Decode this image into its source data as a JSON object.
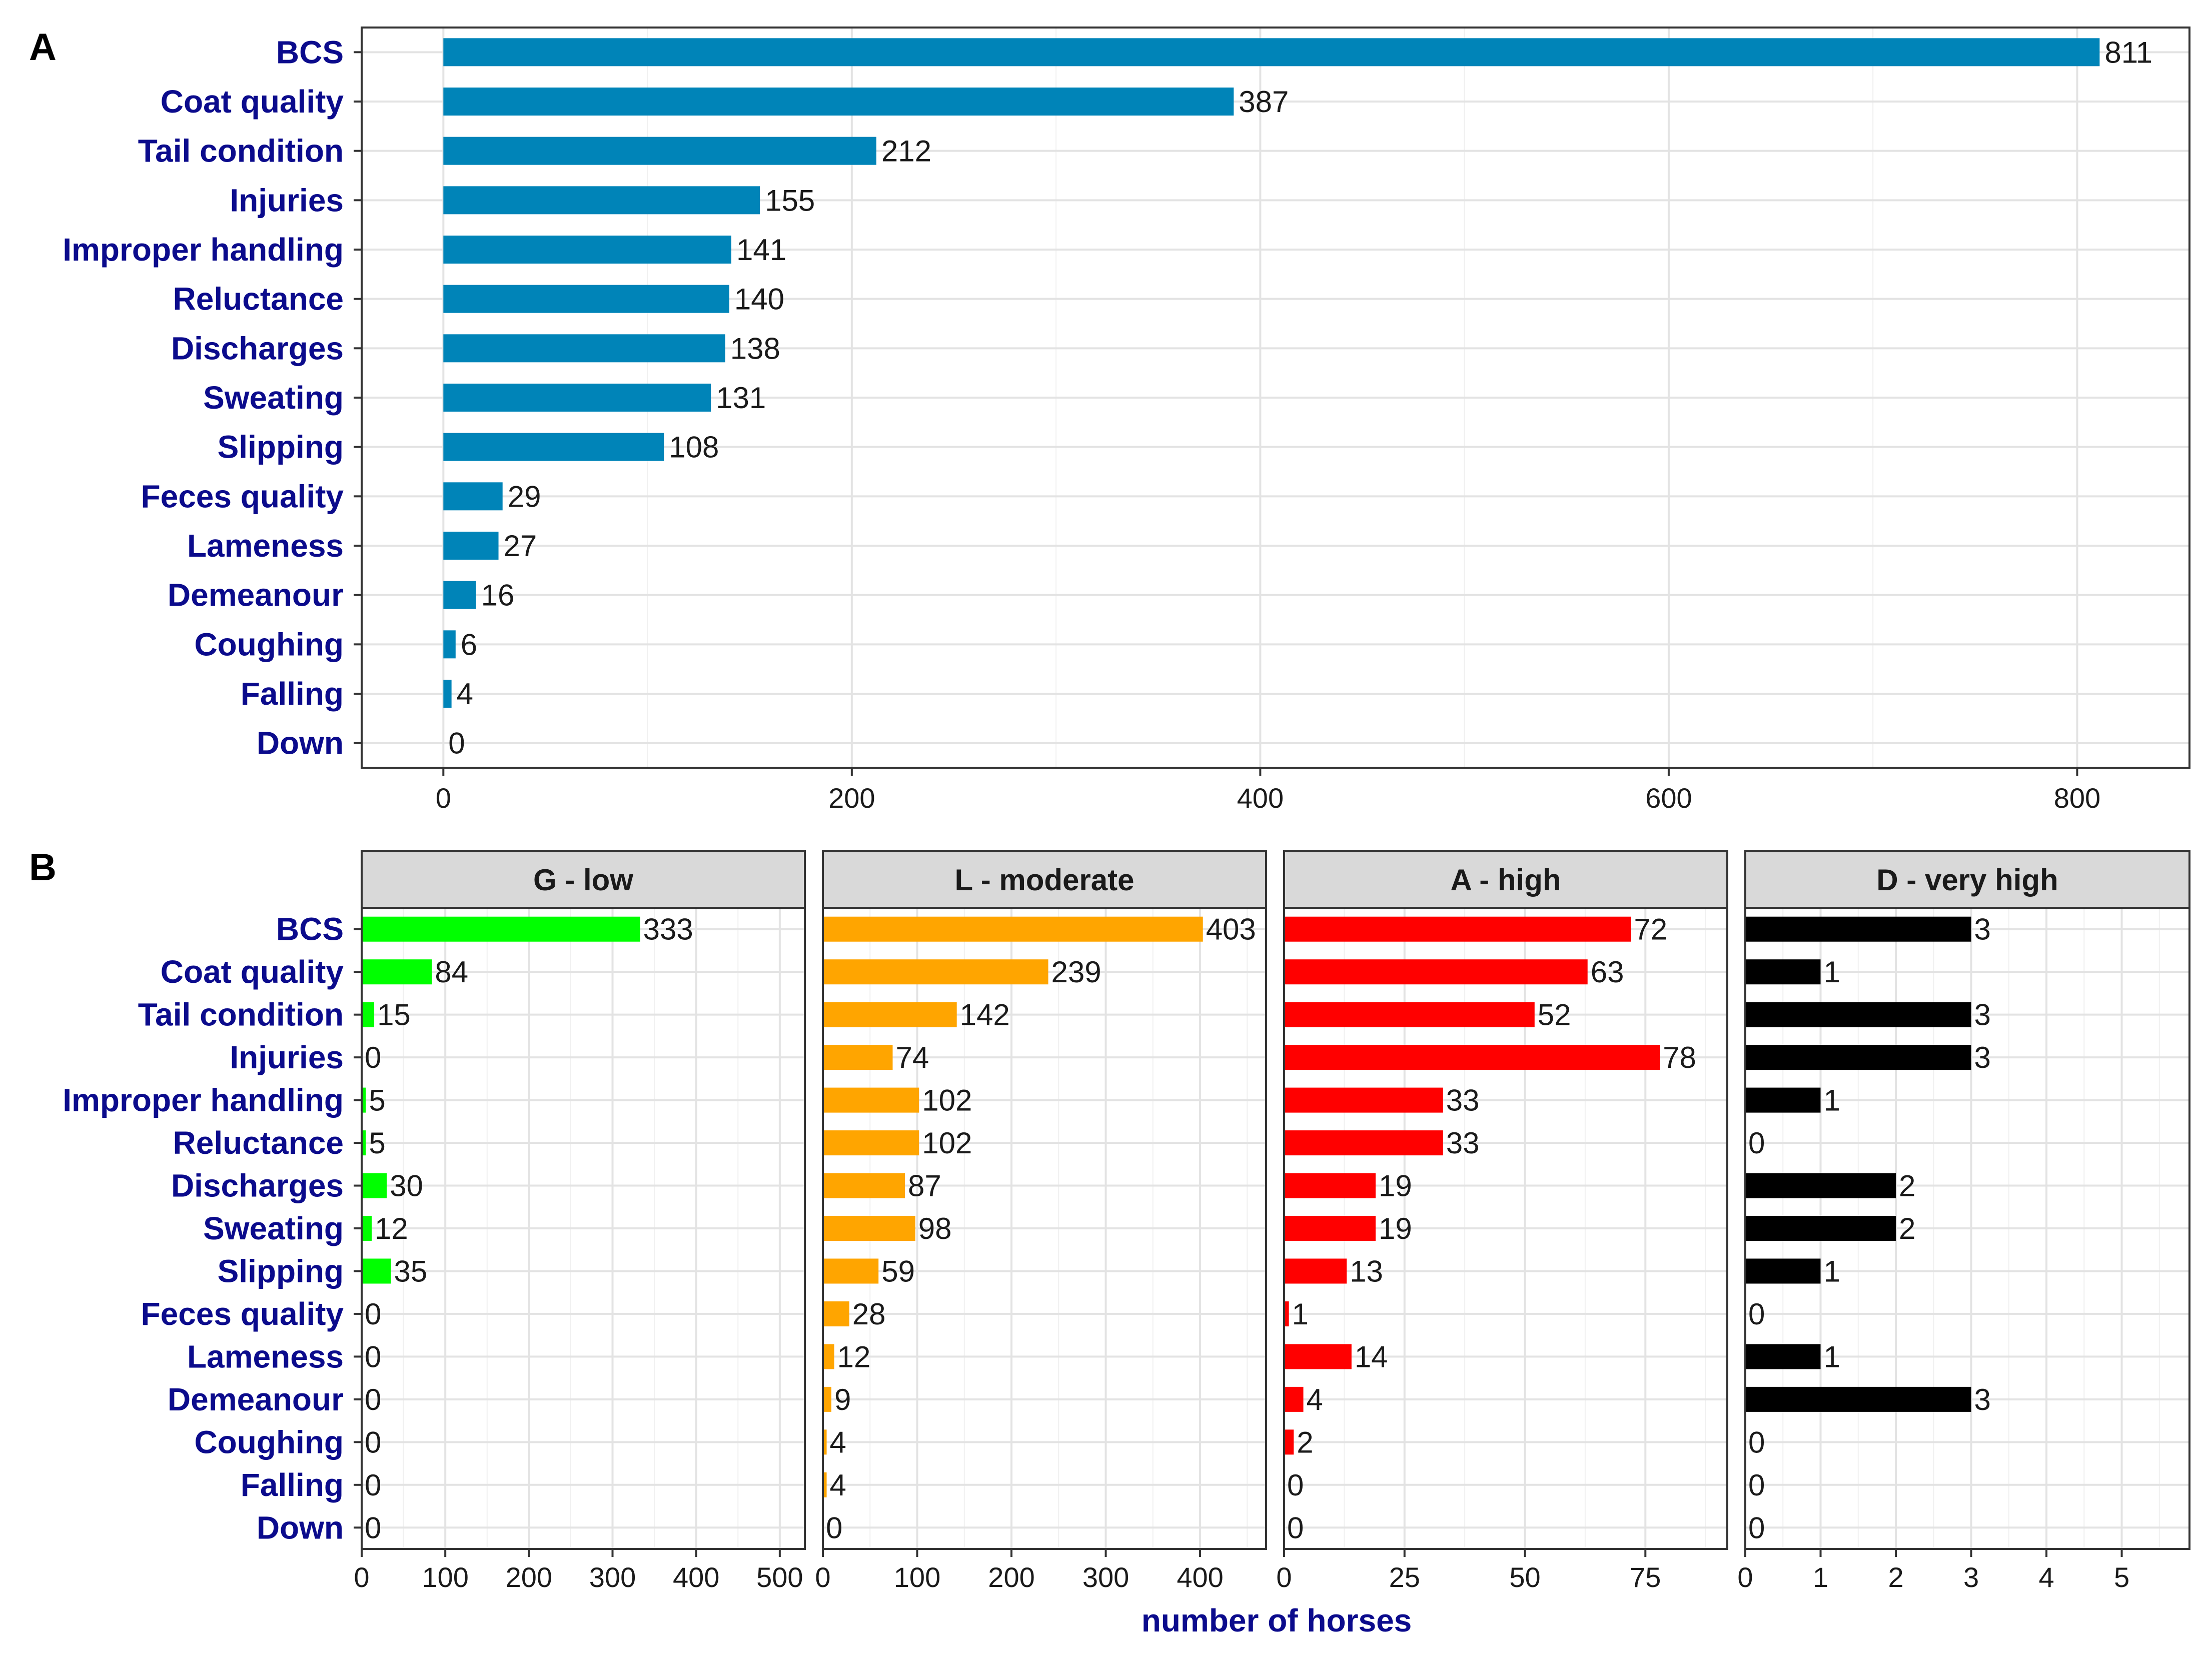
{
  "figure": {
    "panel_a_letter": "A",
    "panel_b_letter": "B",
    "x_axis_title": "number of horses"
  },
  "chart_data": [
    {
      "type": "bar",
      "orientation": "horizontal",
      "panel": "A",
      "title": "",
      "xlabel": "",
      "ylabel": "",
      "categories": [
        "BCS",
        "Coat quality",
        "Tail condition",
        "Injuries",
        "Improper handling",
        "Reluctance",
        "Discharges",
        "Sweating",
        "Slipping",
        "Feces quality",
        "Lameness",
        "Demeanour",
        "Coughing",
        "Falling",
        "Down"
      ],
      "values": [
        811,
        387,
        212,
        155,
        141,
        140,
        138,
        131,
        108,
        29,
        27,
        16,
        6,
        4,
        0
      ],
      "xlim": [
        -40,
        855
      ],
      "xticks": [
        0,
        200,
        400,
        600,
        800
      ],
      "grid": true,
      "color": "#0084b8"
    },
    {
      "type": "bar",
      "orientation": "horizontal",
      "panel": "B",
      "faceted": true,
      "xlabel": "number of horses",
      "categories": [
        "BCS",
        "Coat quality",
        "Tail condition",
        "Injuries",
        "Improper handling",
        "Reluctance",
        "Discharges",
        "Sweating",
        "Slipping",
        "Feces quality",
        "Lameness",
        "Demeanour",
        "Coughing",
        "Falling",
        "Down"
      ],
      "facets": [
        {
          "name": "G - low",
          "color": "#00ff00",
          "xlim": [
            0,
            530
          ],
          "xticks": [
            0,
            100,
            200,
            300,
            400,
            500
          ],
          "values": [
            333,
            84,
            15,
            0,
            5,
            5,
            30,
            12,
            35,
            0,
            0,
            0,
            0,
            0,
            0
          ]
        },
        {
          "name": "L - moderate",
          "color": "#ffa500",
          "xlim": [
            0,
            470
          ],
          "xticks": [
            0,
            100,
            200,
            300,
            400
          ],
          "values": [
            403,
            239,
            142,
            74,
            102,
            102,
            87,
            98,
            59,
            28,
            12,
            9,
            4,
            4,
            0
          ]
        },
        {
          "name": "A - high",
          "color": "#ff0000",
          "xlim": [
            0,
            92
          ],
          "xticks": [
            0,
            25,
            50,
            75
          ],
          "values": [
            72,
            63,
            52,
            78,
            33,
            33,
            19,
            19,
            13,
            1,
            14,
            4,
            2,
            0,
            0
          ]
        },
        {
          "name": "D - very high",
          "color": "#000000",
          "xlim": [
            0,
            5.9
          ],
          "xticks": [
            0,
            1,
            2,
            3,
            4,
            5
          ],
          "values": [
            3,
            1,
            3,
            3,
            1,
            0,
            2,
            2,
            1,
            0,
            1,
            3,
            0,
            0,
            0
          ]
        }
      ]
    }
  ]
}
